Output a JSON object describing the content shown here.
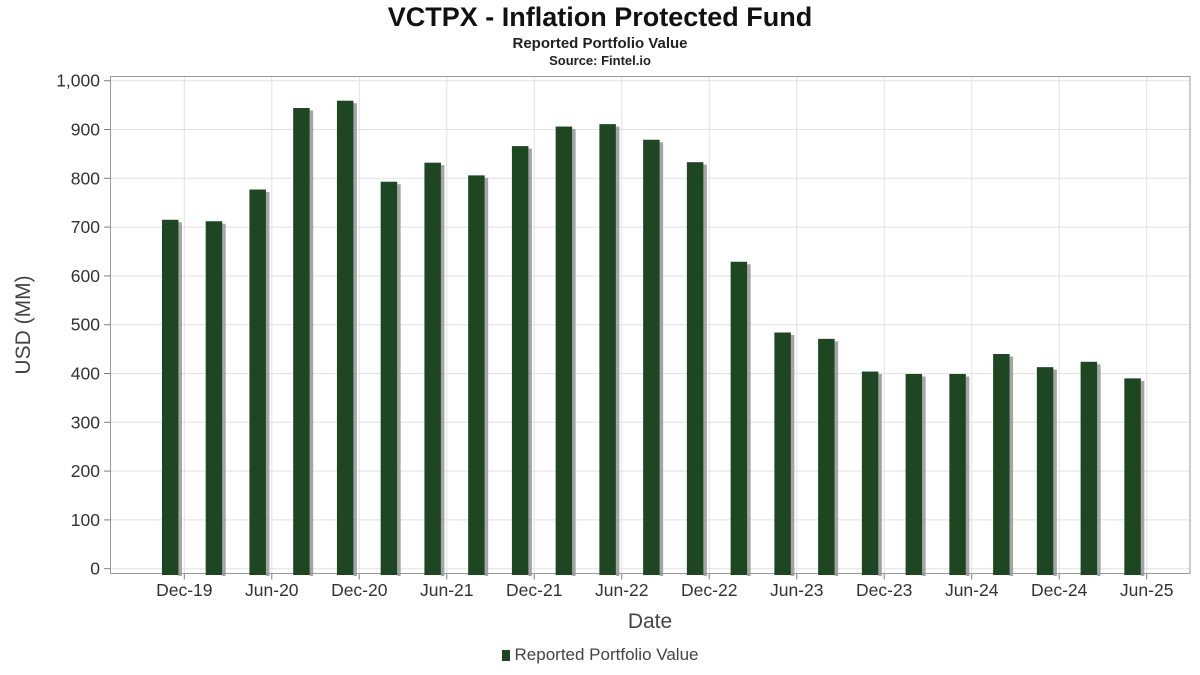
{
  "header": {
    "title": "VCTPX - Inflation Protected Fund",
    "subtitle": "Reported Portfolio Value",
    "source": "Source: Fintel.io"
  },
  "legend": {
    "label": "Reported Portfolio Value"
  },
  "chart_data": {
    "type": "bar",
    "title": "VCTPX - Inflation Protected Fund",
    "subtitle": "Reported Portfolio Value",
    "source": "Source: Fintel.io",
    "xlabel": "Date",
    "ylabel": "USD (MM)",
    "ylim": [
      0,
      1000
    ],
    "grid": true,
    "legend_position": "bottom",
    "series_name": "Reported Portfolio Value",
    "categories": [
      "Dec-19",
      "Mar-20",
      "Jun-20",
      "Sep-20",
      "Dec-20",
      "Mar-21",
      "Jun-21",
      "Sep-21",
      "Dec-21",
      "Mar-22",
      "Jun-22",
      "Sep-22",
      "Dec-22",
      "Mar-23",
      "Jun-23",
      "Sep-23",
      "Dec-23",
      "Mar-24",
      "Jun-24",
      "Sep-24",
      "Dec-24",
      "Mar-25",
      "Jun-25"
    ],
    "values": [
      715,
      712,
      777,
      944,
      959,
      793,
      832,
      806,
      866,
      906,
      911,
      879,
      833,
      629,
      484,
      471,
      404,
      399,
      399,
      440,
      413,
      424,
      390
    ],
    "x_tick_labels": [
      "Dec-19",
      "Jun-20",
      "Dec-20",
      "Jun-21",
      "Dec-21",
      "Jun-22",
      "Dec-22",
      "Jun-23",
      "Dec-23",
      "Jun-24",
      "Dec-24",
      "Jun-25"
    ],
    "y_ticks": [
      0,
      100,
      200,
      300,
      400,
      500,
      600,
      700,
      800,
      900,
      1000
    ],
    "y_tick_labels": [
      "0",
      "100",
      "200",
      "300",
      "400",
      "500",
      "600",
      "700",
      "800",
      "900",
      "1,000"
    ],
    "colors": {
      "bar": "#1e4623",
      "bar_shadow": "#8f8f8f",
      "grid": "#e2e2e2",
      "spine": "#999999",
      "tick": "#808080",
      "tick_label": "#333333",
      "axis_title": "#444444",
      "title": "#111111",
      "legend_text": "#444444"
    }
  }
}
